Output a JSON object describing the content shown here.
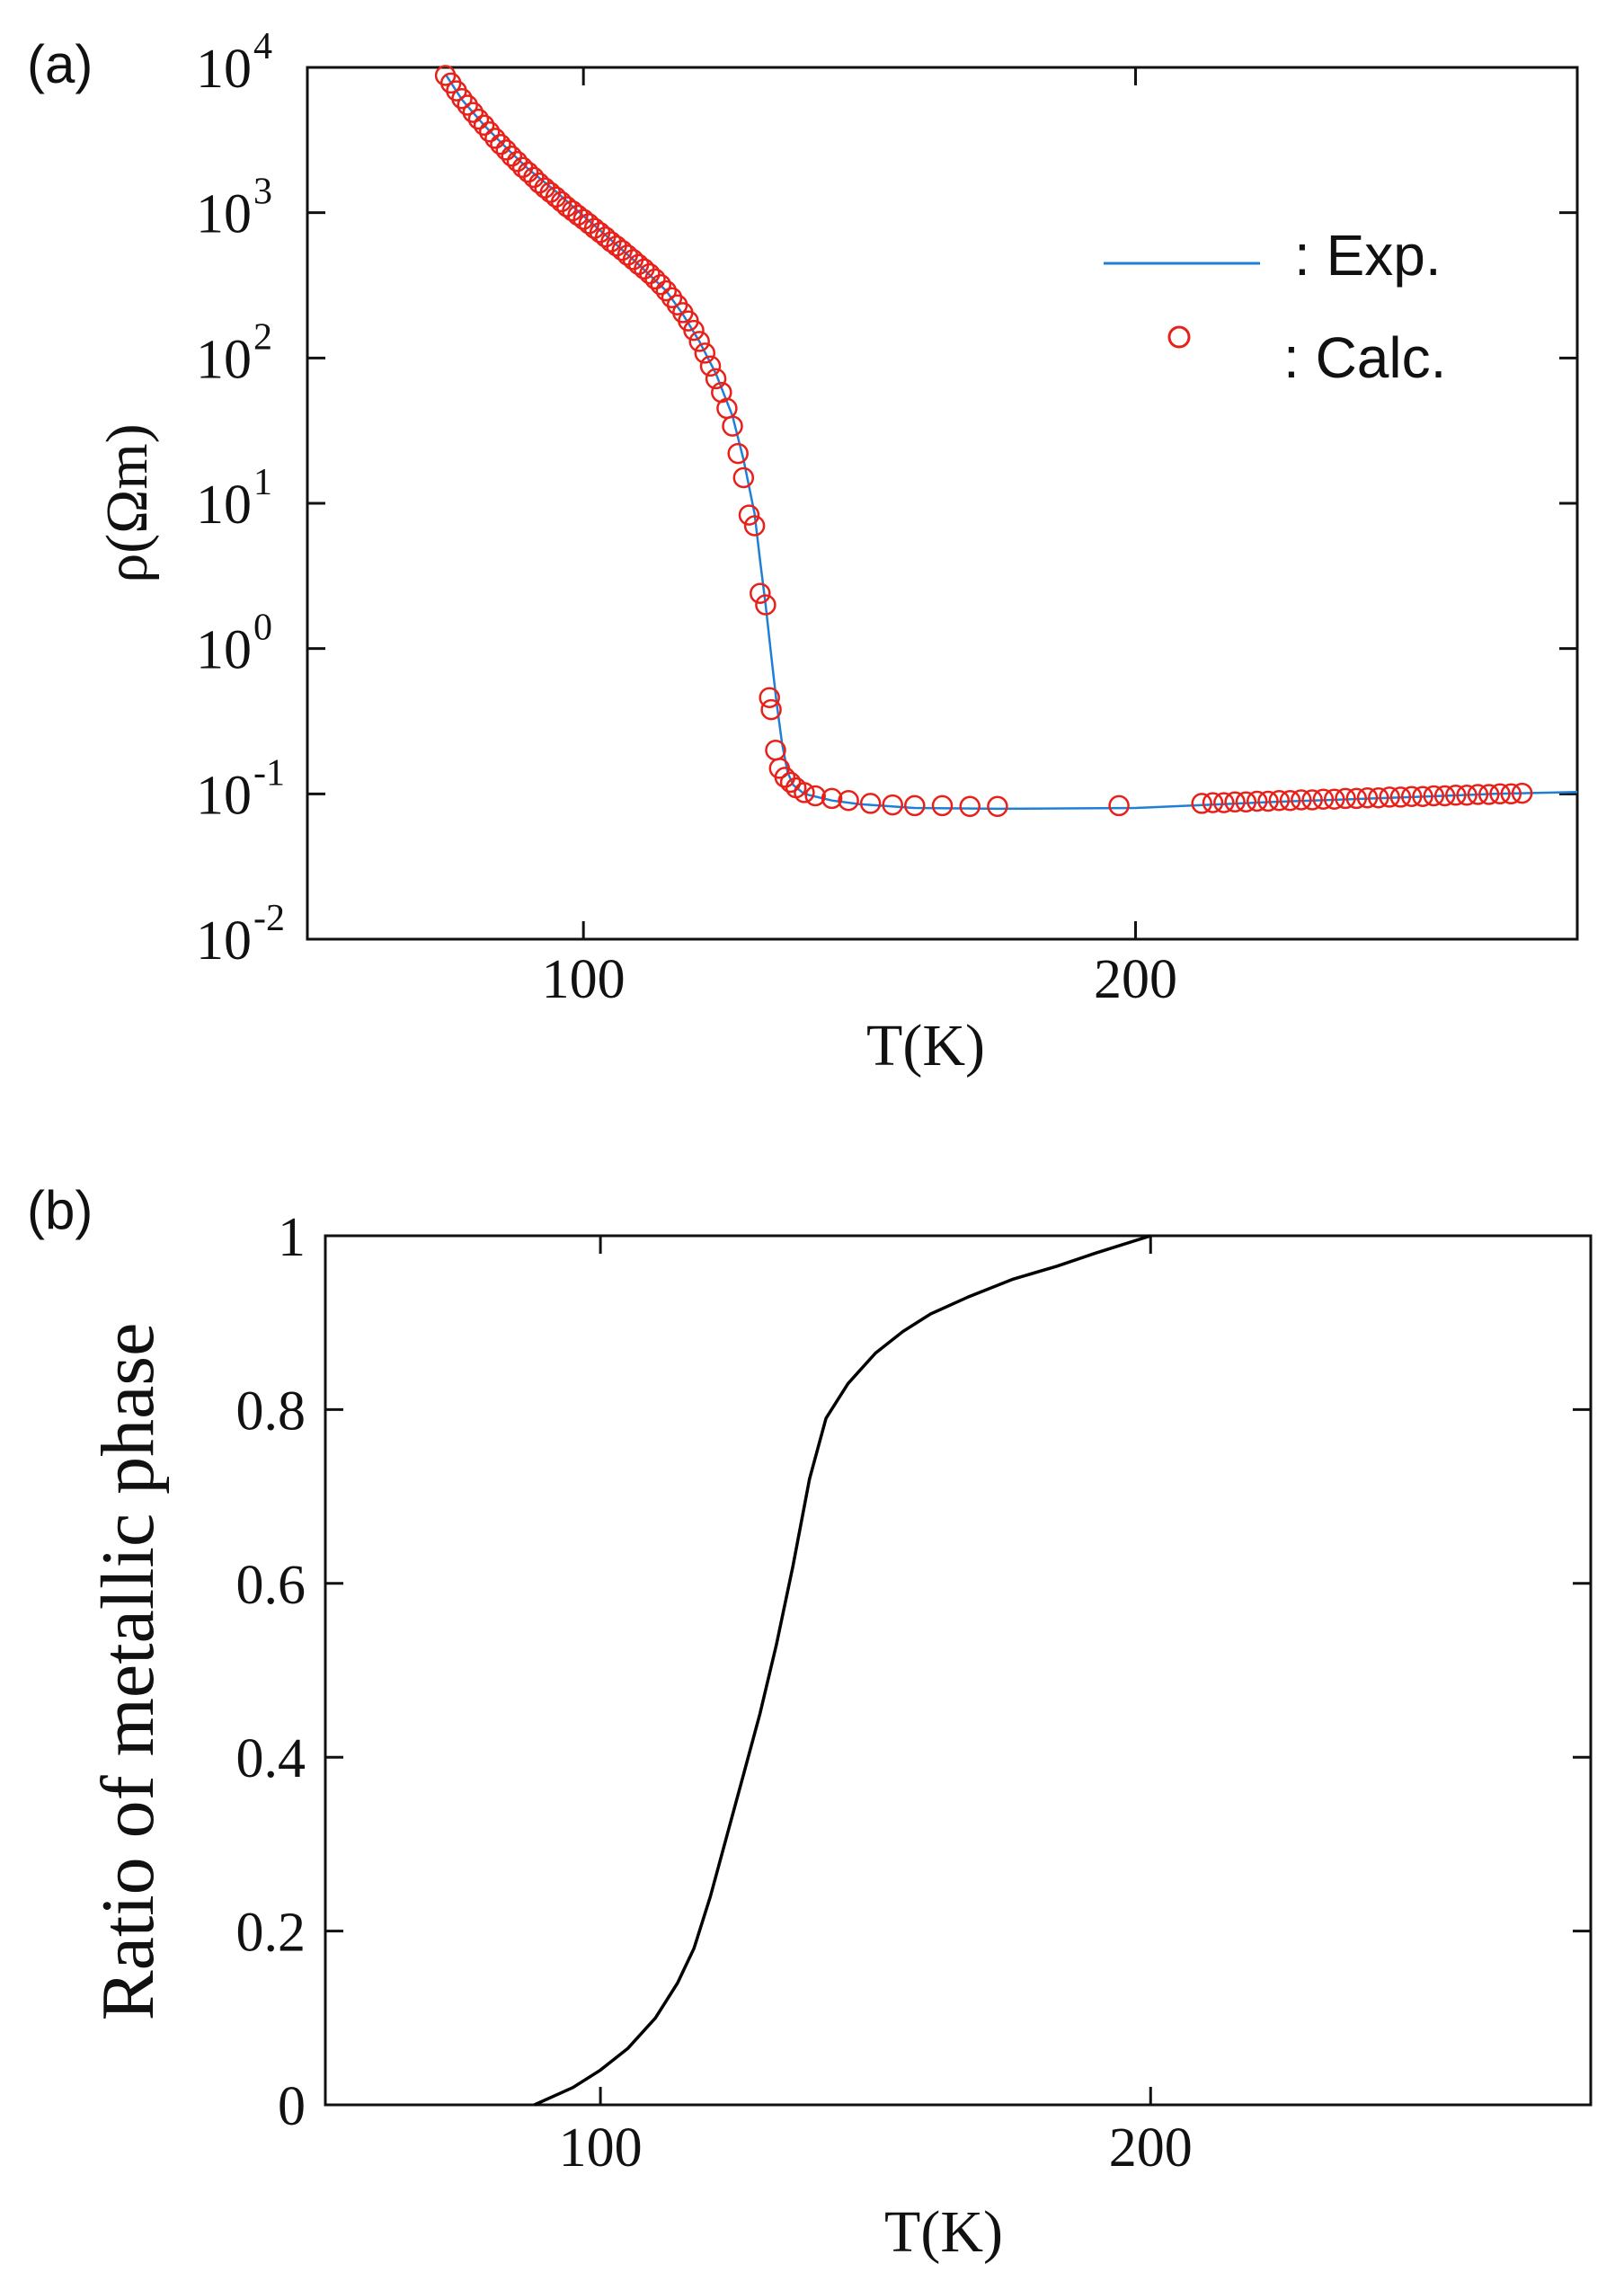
{
  "colors": {
    "exp_line": "#1f7fd6",
    "calc_marker": "#e8201a",
    "axis": "#111111",
    "curve_b": "#000000"
  },
  "chart_data": [
    {
      "panel": "(a)",
      "type": "scatter",
      "xlabel": "T(K)",
      "ylabel": "ρ(Ωm)",
      "xlim": [
        50,
        280
      ],
      "ylim_log10": [
        -2,
        4
      ],
      "yscale": "log",
      "x_ticks": [
        100,
        200
      ],
      "x_tick_labels": [
        "100",
        "200"
      ],
      "y_ticks_exp": [
        4,
        3,
        2,
        1,
        0,
        -1,
        -2
      ],
      "y_tick_base": "10",
      "y_tick_exponents": [
        "4",
        "3",
        "2",
        "1",
        "0",
        "-1",
        "-2"
      ],
      "legend": {
        "position": "top-right",
        "entries": [
          ": Exp.",
          ": Calc."
        ]
      },
      "series": [
        {
          "name": "Exp.",
          "kind": "line",
          "points": [
            [
              75,
              9000
            ],
            [
              78,
              6000
            ],
            [
              82,
              4000
            ],
            [
              86,
              2800
            ],
            [
              90,
              2000
            ],
            [
              95,
              1400
            ],
            [
              100,
              950
            ],
            [
              105,
              650
            ],
            [
              110,
              440
            ],
            [
              115,
              290
            ],
            [
              118,
              200
            ],
            [
              121,
              130
            ],
            [
              124,
              78
            ],
            [
              127,
              40
            ],
            [
              129,
              20
            ],
            [
              131,
              8.5
            ],
            [
              132,
              4
            ],
            [
              133,
              2.0
            ],
            [
              134,
              0.9
            ],
            [
              135,
              0.42
            ],
            [
              136,
              0.22
            ],
            [
              137,
              0.14
            ],
            [
              138,
              0.115
            ],
            [
              140,
              0.1
            ],
            [
              145,
              0.09
            ],
            [
              150,
              0.085
            ],
            [
              160,
              0.08
            ],
            [
              175,
              0.079
            ],
            [
              200,
              0.08
            ],
            [
              225,
              0.088
            ],
            [
              250,
              0.095
            ],
            [
              265,
              0.1
            ],
            [
              280,
              0.103
            ]
          ]
        },
        {
          "name": "Calc.",
          "kind": "markers",
          "points": [
            [
              75,
              8800
            ],
            [
              76,
              7800
            ],
            [
              77,
              6900
            ],
            [
              78,
              6100
            ],
            [
              79,
              5500
            ],
            [
              80,
              4900
            ],
            [
              81,
              4400
            ],
            [
              82,
              4000
            ],
            [
              83,
              3600
            ],
            [
              84,
              3250
            ],
            [
              85,
              2950
            ],
            [
              86,
              2700
            ],
            [
              87,
              2450
            ],
            [
              88,
              2250
            ],
            [
              89,
              2050
            ],
            [
              90,
              1900
            ],
            [
              91,
              1750
            ],
            [
              92,
              1600
            ],
            [
              93,
              1480
            ],
            [
              94,
              1380
            ],
            [
              95,
              1280
            ],
            [
              96,
              1190
            ],
            [
              97,
              1100
            ],
            [
              98,
              1030
            ],
            [
              99,
              960
            ],
            [
              100,
              900
            ],
            [
              101,
              840
            ],
            [
              102,
              780
            ],
            [
              103,
              730
            ],
            [
              104,
              680
            ],
            [
              105,
              630
            ],
            [
              106,
              590
            ],
            [
              107,
              550
            ],
            [
              108,
              510
            ],
            [
              109,
              475
            ],
            [
              110,
              440
            ],
            [
              111,
              410
            ],
            [
              112,
              380
            ],
            [
              113,
              350
            ],
            [
              114,
              320
            ],
            [
              115,
              290
            ],
            [
              116,
              260
            ],
            [
              117,
              232
            ],
            [
              118,
              205
            ],
            [
              119,
              180
            ],
            [
              120,
              155
            ],
            [
              121,
              130
            ],
            [
              122,
              108
            ],
            [
              123,
              88
            ],
            [
              124,
              72
            ],
            [
              125,
              58
            ],
            [
              126,
              45
            ],
            [
              127,
              34
            ],
            [
              128,
              22
            ],
            [
              129,
              15
            ],
            [
              130,
              8.3
            ],
            [
              131,
              7.0
            ],
            [
              132,
              2.4
            ],
            [
              133,
              2.0
            ],
            [
              133.7,
              0.46
            ],
            [
              134,
              0.38
            ],
            [
              134.8,
              0.2
            ],
            [
              135.5,
              0.15
            ],
            [
              136.5,
              0.13
            ],
            [
              137.5,
              0.12
            ],
            [
              138.5,
              0.11
            ],
            [
              140,
              0.102
            ],
            [
              142,
              0.097
            ],
            [
              145,
              0.093
            ],
            [
              148,
              0.09
            ],
            [
              152,
              0.086
            ],
            [
              156,
              0.084
            ],
            [
              160,
              0.083
            ],
            [
              165,
              0.083
            ],
            [
              170,
              0.082
            ],
            [
              175,
              0.082
            ],
            [
              197,
              0.083
            ],
            [
              212,
              0.086
            ],
            [
              214,
              0.087
            ],
            [
              216,
              0.087
            ],
            [
              218,
              0.088
            ],
            [
              220,
              0.088
            ],
            [
              222,
              0.089
            ],
            [
              224,
              0.089
            ],
            [
              226,
              0.09
            ],
            [
              228,
              0.09
            ],
            [
              230,
              0.091
            ],
            [
              232,
              0.091
            ],
            [
              234,
              0.092
            ],
            [
              236,
              0.092
            ],
            [
              238,
              0.093
            ],
            [
              240,
              0.093
            ],
            [
              242,
              0.094
            ],
            [
              244,
              0.094
            ],
            [
              246,
              0.095
            ],
            [
              248,
              0.095
            ],
            [
              250,
              0.096
            ],
            [
              252,
              0.096
            ],
            [
              254,
              0.097
            ],
            [
              256,
              0.097
            ],
            [
              258,
              0.098
            ],
            [
              260,
              0.098
            ],
            [
              262,
              0.099
            ],
            [
              264,
              0.099
            ],
            [
              266,
              0.1
            ],
            [
              268,
              0.1
            ],
            [
              270,
              0.101
            ]
          ]
        }
      ]
    },
    {
      "panel": "(b)",
      "type": "line",
      "xlabel": "T(K)",
      "ylabel": "Ratio of metallic phase",
      "xlim": [
        50,
        280
      ],
      "ylim": [
        0,
        1
      ],
      "x_ticks": [
        100,
        200
      ],
      "x_tick_labels": [
        "100",
        "200"
      ],
      "y_ticks": [
        0,
        0.2,
        0.4,
        0.6,
        0.8,
        1
      ],
      "y_tick_labels": [
        "0",
        "0.2",
        "0.4",
        "0.6",
        "0.8",
        "1"
      ],
      "series": [
        {
          "name": "Ratio of metallic phase",
          "points": [
            [
              88,
              0
            ],
            [
              95,
              0.02
            ],
            [
              100,
              0.04
            ],
            [
              105,
              0.065
            ],
            [
              110,
              0.1
            ],
            [
              114,
              0.14
            ],
            [
              117,
              0.18
            ],
            [
              120,
              0.24
            ],
            [
              123,
              0.31
            ],
            [
              126,
              0.38
            ],
            [
              129,
              0.45
            ],
            [
              132,
              0.53
            ],
            [
              135,
              0.62
            ],
            [
              138,
              0.72
            ],
            [
              141,
              0.79
            ],
            [
              145,
              0.83
            ],
            [
              150,
              0.865
            ],
            [
              155,
              0.89
            ],
            [
              160,
              0.91
            ],
            [
              167,
              0.93
            ],
            [
              175,
              0.95
            ],
            [
              183,
              0.965
            ],
            [
              190,
              0.98
            ],
            [
              200,
              1.0
            ]
          ]
        }
      ]
    }
  ]
}
